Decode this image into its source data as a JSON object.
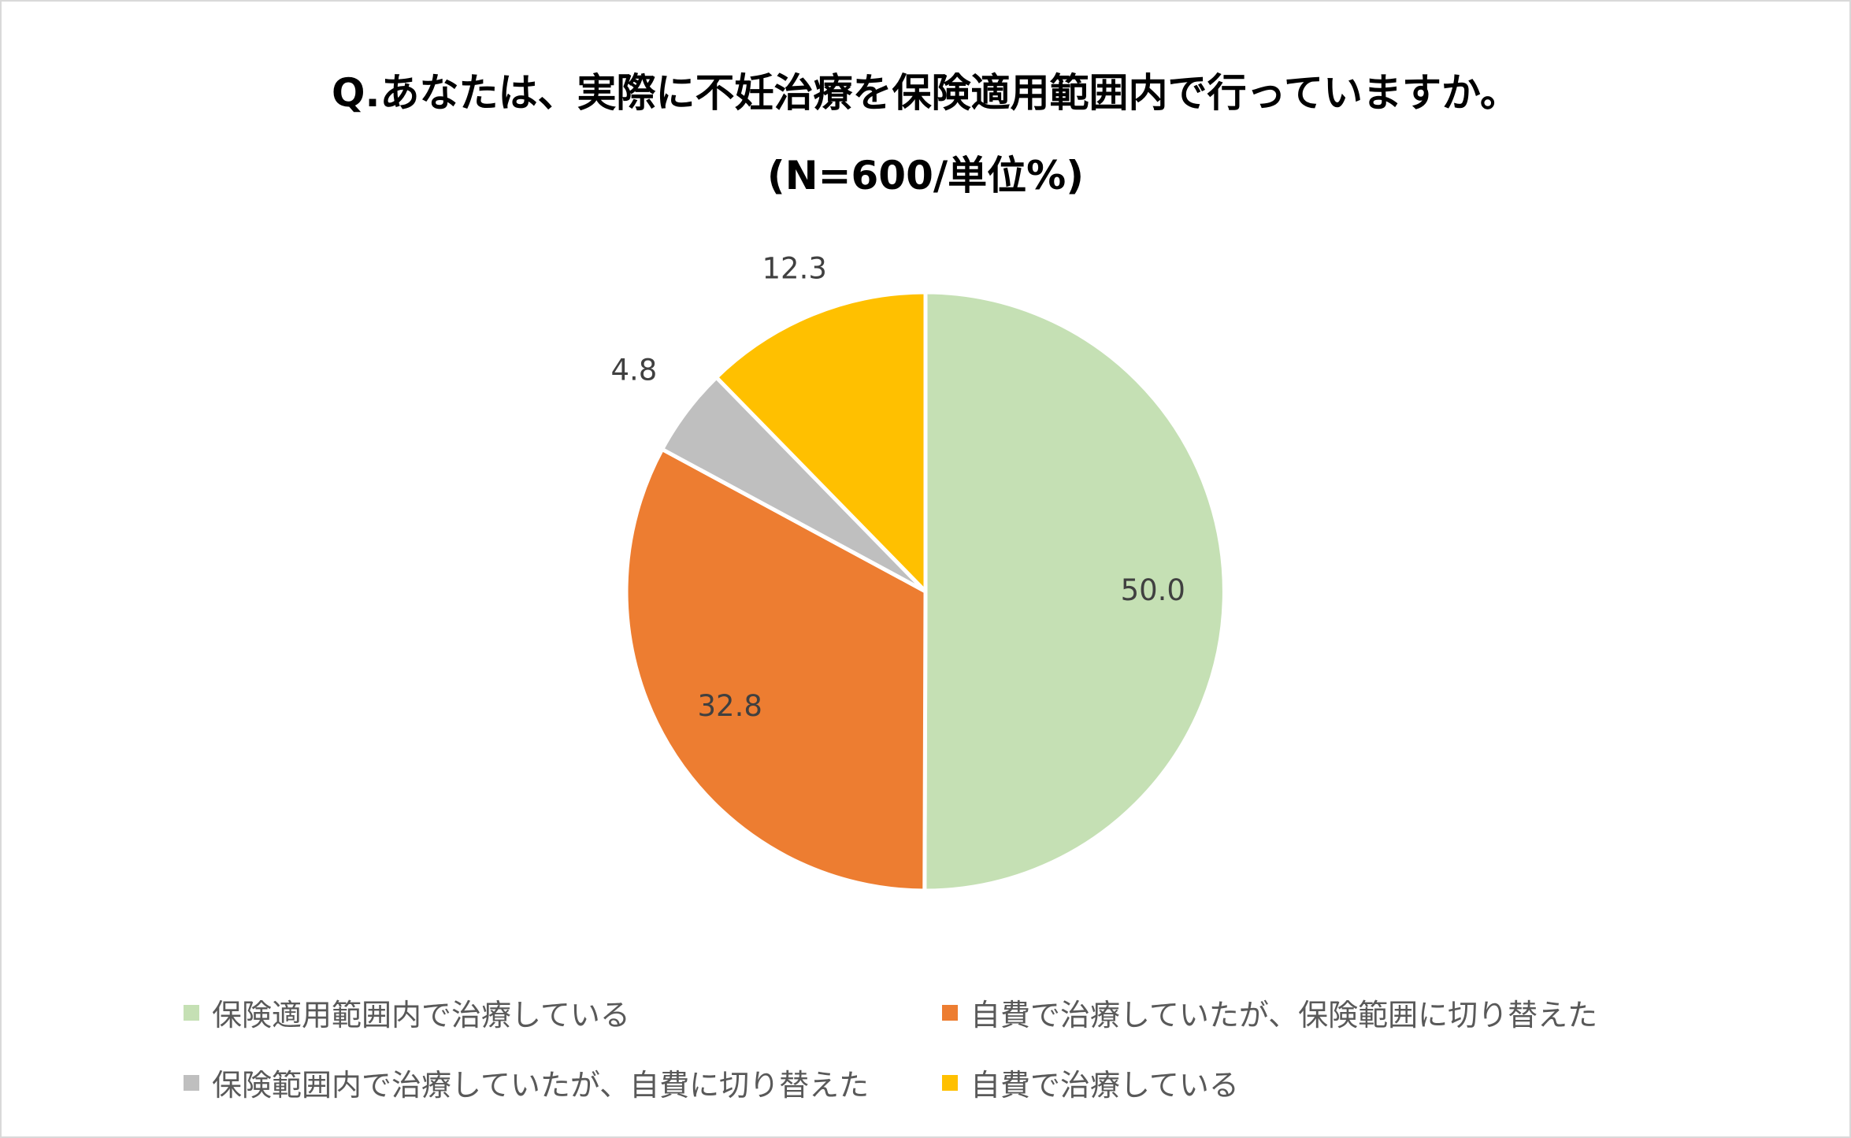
{
  "chart_data": {
    "type": "pie",
    "title": "Q.あなたは、実際に不妊治療を保険適用範囲内で行っていますか。",
    "subtitle": "(N=600/単位%)",
    "legend_position": "bottom",
    "categories": [
      "保険適用範囲内で治療している",
      "自費で治療していたが、保険範囲に切り替えた",
      "保険範囲内で治療していたが、自費に切り替えた",
      "自費で治療している"
    ],
    "values": [
      50.0,
      32.8,
      4.8,
      12.3
    ],
    "labels": [
      "50.0",
      "32.8",
      "4.8",
      "12.3"
    ],
    "colors": [
      "#c5e0b4",
      "#ed7d31",
      "#bfbfbf",
      "#ffc000"
    ]
  }
}
